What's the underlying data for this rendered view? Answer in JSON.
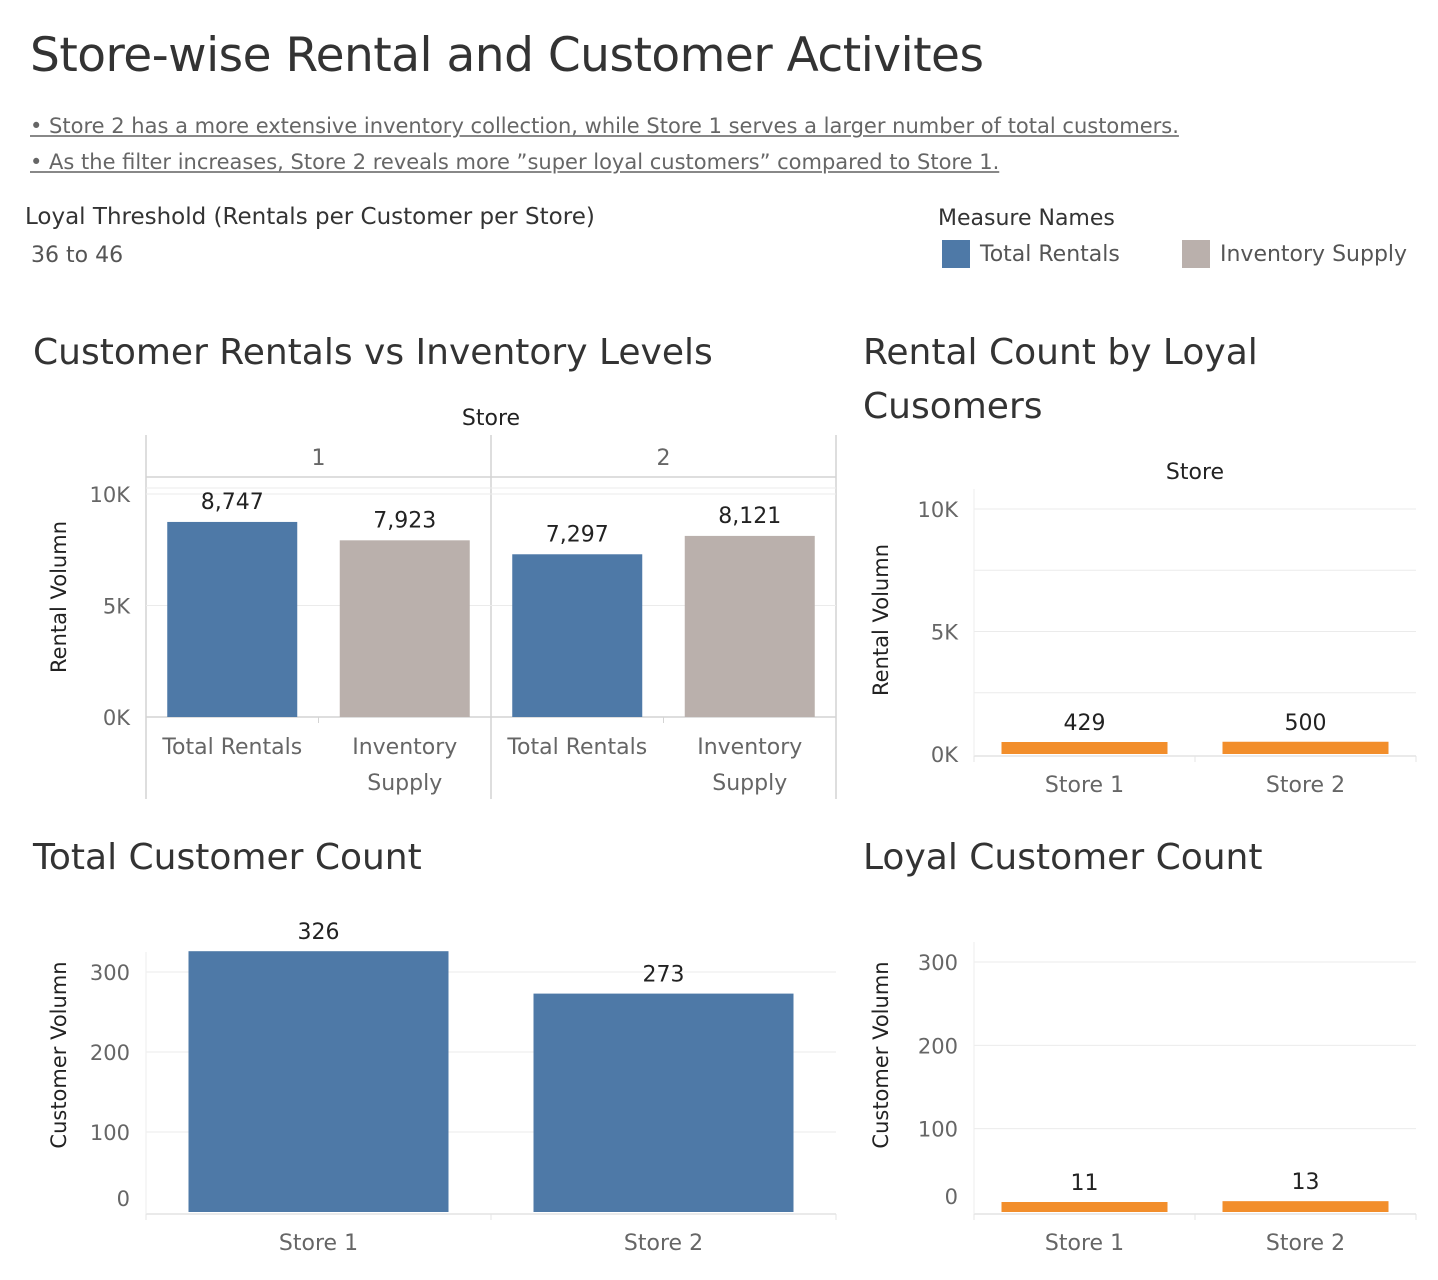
{
  "page": {
    "title": "Store-wise Rental and Customer Activites",
    "notes": [
      "• Store 2 has a more extensive inventory collection, while Store 1 serves a larger number of total customers.",
      "• As the filter increases, Store 2 reveals more ”super loyal customers” compared to Store 1."
    ]
  },
  "filter": {
    "label": "Loyal Threshold (Rentals per Customer per Store)",
    "value": "36 to 46"
  },
  "legend": {
    "title": "Measure Names",
    "items": [
      {
        "label": "Total Rentals",
        "color": "#4e79a7"
      },
      {
        "label": "Inventory Supply",
        "color": "#bab0ac"
      }
    ]
  },
  "panels": {
    "rentals_vs_inventory": "Customer Rentals vs Inventory Levels",
    "loyal_rentals_line1": "Rental Count by Loyal",
    "loyal_rentals_line2": "Cusomers",
    "total_customers": "Total Customer Count",
    "loyal_customers": "Loyal Customer Count"
  },
  "chart_data": [
    {
      "id": "rentals_vs_inventory",
      "type": "bar",
      "column_header": "Store",
      "groups": [
        "1",
        "2"
      ],
      "categories": [
        "Total Rentals",
        "Inventory Supply"
      ],
      "category_lines": [
        [
          "Total Rentals"
        ],
        [
          "Inventory",
          "Supply"
        ]
      ],
      "series": [
        {
          "group": "1",
          "values": [
            8747,
            7923
          ]
        },
        {
          "group": "2",
          "values": [
            7297,
            8121
          ]
        }
      ],
      "value_labels": [
        [
          "8,747",
          "7,923"
        ],
        [
          "7,297",
          "8,121"
        ]
      ],
      "colors": [
        "#4e79a7",
        "#bab0ac"
      ],
      "ylabel": "Rental Volumn",
      "yticks": [
        0,
        5000,
        10000
      ],
      "ytick_labels": [
        "0K",
        "5K",
        "10K"
      ],
      "ylim": [
        0,
        10000
      ]
    },
    {
      "id": "loyal_rentals",
      "type": "bar",
      "column_header": "Store",
      "categories": [
        "Store 1",
        "Store 2"
      ],
      "values": [
        429,
        500
      ],
      "value_labels": [
        "429",
        "500"
      ],
      "color": "#f28e2b",
      "ylabel": "Rental Volumn",
      "yticks": [
        0,
        5000,
        10000
      ],
      "ytick_labels": [
        "0K",
        "5K",
        "10K"
      ],
      "ylim": [
        0,
        10000
      ]
    },
    {
      "id": "total_customers",
      "type": "bar",
      "categories": [
        "Store 1",
        "Store 2"
      ],
      "values": [
        326,
        273
      ],
      "value_labels": [
        "326",
        "273"
      ],
      "color": "#4e79a7",
      "ylabel": "Customer Volumn",
      "yticks": [
        0,
        100,
        200,
        300
      ],
      "ytick_labels": [
        "0",
        "100",
        "200",
        "300"
      ],
      "ylim": [
        0,
        300
      ]
    },
    {
      "id": "loyal_customers",
      "type": "bar",
      "categories": [
        "Store 1",
        "Store 2"
      ],
      "values": [
        11,
        13
      ],
      "value_labels": [
        "11",
        "13"
      ],
      "color": "#f28e2b",
      "ylabel": "Customer Volumn",
      "yticks": [
        0,
        100,
        200,
        300
      ],
      "ytick_labels": [
        "0",
        "100",
        "200",
        "300"
      ],
      "ylim": [
        0,
        300
      ]
    }
  ]
}
